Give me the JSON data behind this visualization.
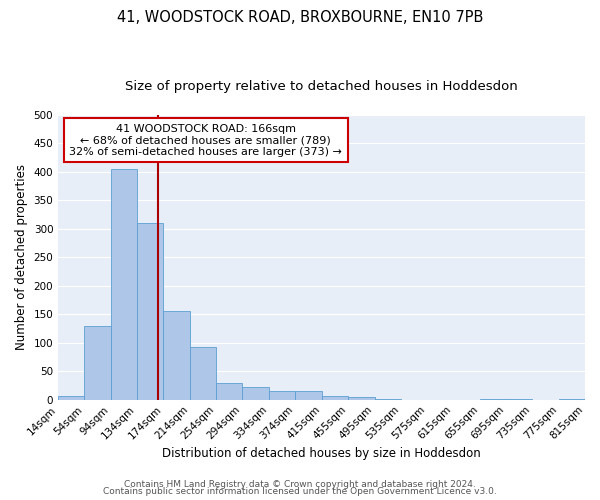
{
  "title": "41, WOODSTOCK ROAD, BROXBOURNE, EN10 7PB",
  "subtitle": "Size of property relative to detached houses in Hoddesdon",
  "xlabel": "Distribution of detached houses by size in Hoddesdon",
  "ylabel": "Number of detached properties",
  "bar_color": "#aec6e8",
  "bar_edgecolor": "#5a9fd4",
  "background_color": "#e8eef8",
  "grid_color": "#ffffff",
  "property_size": 166,
  "annotation_title": "41 WOODSTOCK ROAD: 166sqm",
  "annotation_line1": "← 68% of detached houses are smaller (789)",
  "annotation_line2": "32% of semi-detached houses are larger (373) →",
  "vline_color": "#aa0000",
  "annotation_box_edgecolor": "#cc0000",
  "bin_edges": [
    14,
    54,
    94,
    134,
    174,
    214,
    254,
    294,
    334,
    374,
    415,
    455,
    495,
    535,
    575,
    615,
    655,
    695,
    735,
    775,
    815
  ],
  "bin_labels": [
    "14sqm",
    "54sqm",
    "94sqm",
    "134sqm",
    "174sqm",
    "214sqm",
    "254sqm",
    "294sqm",
    "334sqm",
    "374sqm",
    "415sqm",
    "455sqm",
    "495sqm",
    "535sqm",
    "575sqm",
    "615sqm",
    "655sqm",
    "695sqm",
    "735sqm",
    "775sqm",
    "815sqm"
  ],
  "bar_heights": [
    7,
    130,
    405,
    310,
    155,
    93,
    30,
    22,
    15,
    15,
    7,
    5,
    1,
    0,
    0,
    0,
    1,
    1,
    0,
    1,
    0
  ],
  "ylim": [
    0,
    500
  ],
  "yticks": [
    0,
    50,
    100,
    150,
    200,
    250,
    300,
    350,
    400,
    450,
    500
  ],
  "footer_line1": "Contains HM Land Registry data © Crown copyright and database right 2024.",
  "footer_line2": "Contains public sector information licensed under the Open Government Licence v3.0.",
  "title_fontsize": 10.5,
  "subtitle_fontsize": 9.5,
  "axis_label_fontsize": 8.5,
  "tick_fontsize": 7.5,
  "annotation_fontsize": 8,
  "footer_fontsize": 6.5
}
